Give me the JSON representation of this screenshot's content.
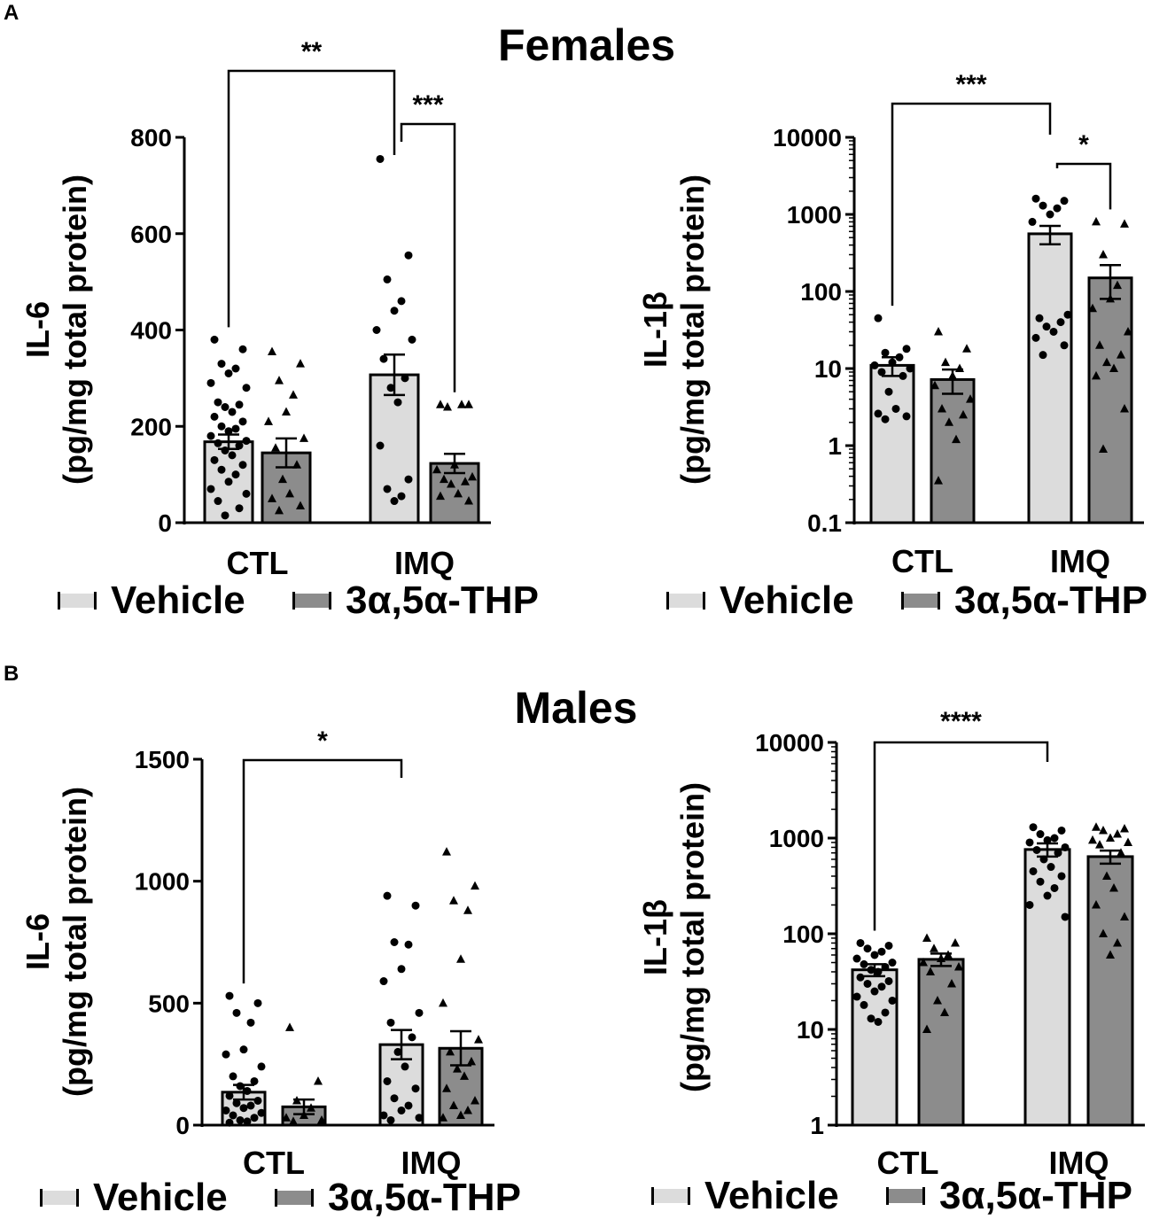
{
  "figure": {
    "panels": [
      {
        "letter": "A",
        "title": "Females"
      },
      {
        "letter": "B",
        "title": "Males"
      }
    ]
  },
  "colors": {
    "vehicle": "#dcdcdc",
    "thp": "#8c8c8c",
    "ink": "#000000"
  },
  "chart_data": [
    {
      "id": "A-IL6",
      "panel": "A",
      "type": "bar",
      "scale": "linear",
      "ylabel_line1": "IL-6",
      "ylabel_line2": "(pg/mg total protein)",
      "ylim": [
        0,
        800
      ],
      "yticks": [
        0,
        200,
        400,
        600,
        800
      ],
      "ytick_labels": [
        "0",
        "200",
        "400",
        "600",
        "800"
      ],
      "categories": [
        "CTL",
        "IMQ"
      ],
      "legend": [
        "Vehicle",
        "3α,5α-THP"
      ],
      "series": [
        {
          "name": "Vehicle",
          "marker": "circle",
          "values": [
            168,
            307
          ],
          "sem": [
            15,
            42
          ],
          "points": [
            [
              380,
              360,
              330,
              320,
              310,
              290,
              280,
              250,
              245,
              240,
              230,
              220,
              210,
              200,
              195,
              190,
              180,
              170,
              165,
              160,
              150,
              140,
              130,
              120,
              110,
              100,
              85,
              70,
              60,
              45,
              30,
              15
            ],
            [
              755,
              555,
              505,
              460,
              440,
              400,
              380,
              340,
              300,
              280,
              250,
              160,
              90,
              70,
              55,
              45
            ]
          ]
        },
        {
          "name": "3α,5α-THP",
          "marker": "triangle",
          "values": [
            145,
            123
          ],
          "sem": [
            30,
            20
          ],
          "points": [
            [
              355,
              330,
              295,
              265,
              230,
              210,
              175,
              155,
              120,
              90,
              60,
              50,
              35,
              25
            ],
            [
              245,
              245,
              240,
              245,
              120,
              110,
              95,
              90,
              85,
              80,
              60,
              55,
              45
            ]
          ]
        }
      ],
      "significance": [
        {
          "label": "**",
          "from": "Vehicle CTL",
          "to": "Vehicle IMQ"
        },
        {
          "label": "***",
          "from": "Vehicle IMQ",
          "to": "3α,5α-THP IMQ"
        }
      ]
    },
    {
      "id": "A-IL1b",
      "panel": "A",
      "type": "bar",
      "scale": "log",
      "ylabel_line1": "IL-1β",
      "ylabel_line2": "(pg/mg total protein)",
      "ylim": [
        0.1,
        10000
      ],
      "yticks": [
        0.1,
        1,
        10,
        100,
        1000,
        10000
      ],
      "ytick_labels": [
        "0.1",
        "1",
        "10",
        "100",
        "1000",
        "10000"
      ],
      "categories": [
        "CTL",
        "IMQ"
      ],
      "legend": [
        "Vehicle",
        "3α,5α-THP"
      ],
      "series": [
        {
          "name": "Vehicle",
          "marker": "circle",
          "values": [
            11,
            560
          ],
          "sem": [
            3,
            150
          ],
          "points": [
            [
              45,
              18,
              16,
              14,
              12,
              11,
              10,
              9,
              8,
              5,
              3,
              2.6,
              2.4,
              2.2
            ],
            [
              1600,
              1500,
              1300,
              1200,
              1000,
              800,
              50,
              45,
              40,
              35,
              30,
              25,
              20,
              15
            ]
          ]
        },
        {
          "name": "3α,5α-THP",
          "marker": "triangle",
          "values": [
            7.2,
            150
          ],
          "sem": [
            2.5,
            70
          ],
          "points": [
            [
              30,
              18,
              12,
              10,
              8,
              6,
              4,
              3,
              2.5,
              2,
              1.2,
              0.35
            ],
            [
              800,
              750,
              300,
              120,
              80,
              60,
              30,
              20,
              15,
              12,
              10,
              8,
              3,
              0.9
            ]
          ]
        }
      ],
      "significance": [
        {
          "label": "***",
          "from": "Vehicle CTL",
          "to": "Vehicle IMQ"
        },
        {
          "label": "*",
          "from": "Vehicle IMQ",
          "to": "3α,5α-THP IMQ"
        }
      ]
    },
    {
      "id": "B-IL6",
      "panel": "B",
      "type": "bar",
      "scale": "linear",
      "ylabel_line1": "IL-6",
      "ylabel_line2": "(pg/mg total protein)",
      "ylim": [
        0,
        1500
      ],
      "yticks": [
        0,
        500,
        1000,
        1500
      ],
      "ytick_labels": [
        "0",
        "500",
        "1000",
        "1500"
      ],
      "categories": [
        "CTL",
        "IMQ"
      ],
      "legend": [
        "Vehicle",
        "3α,5α-THP"
      ],
      "series": [
        {
          "name": "Vehicle",
          "marker": "circle",
          "values": [
            135,
            330
          ],
          "sem": [
            30,
            60
          ],
          "points": [
            [
              530,
              500,
              460,
              420,
              310,
              290,
              240,
              200,
              180,
              160,
              140,
              120,
              100,
              90,
              80,
              70,
              60,
              50,
              40,
              30,
              20,
              15,
              10
            ],
            [
              940,
              900,
              750,
              740,
              640,
              590,
              460,
              420,
              360,
              300,
              240,
              180,
              150,
              110,
              80,
              60,
              40,
              30,
              20
            ]
          ]
        },
        {
          "name": "3α,5α-THP",
          "marker": "triangle",
          "values": [
            75,
            315
          ],
          "sem": [
            30,
            70
          ],
          "points": [
            [
              400,
              180,
              100,
              70,
              40,
              30,
              20,
              15
            ],
            [
              1120,
              980,
              920,
              880,
              680,
              500,
              350,
              300,
              260,
              230,
              200,
              150,
              100,
              80,
              60,
              40,
              30
            ]
          ]
        }
      ],
      "significance": [
        {
          "label": "*",
          "from": "Vehicle CTL",
          "to": "Vehicle IMQ"
        }
      ]
    },
    {
      "id": "B-IL1b",
      "panel": "B",
      "type": "bar",
      "scale": "log",
      "ylabel_line1": "IL-1β",
      "ylabel_line2": "(pg/mg total protein)",
      "ylim": [
        1,
        10000
      ],
      "yticks": [
        1,
        10,
        100,
        1000,
        10000
      ],
      "ytick_labels": [
        "1",
        "10",
        "100",
        "1000",
        "10000"
      ],
      "categories": [
        "CTL",
        "IMQ"
      ],
      "legend": [
        "Vehicle",
        "3α,5α-THP"
      ],
      "series": [
        {
          "name": "Vehicle",
          "marker": "circle",
          "values": [
            42,
            760
          ],
          "sem": [
            6,
            120
          ],
          "points": [
            [
              80,
              75,
              70,
              65,
              60,
              55,
              50,
              48,
              45,
              42,
              40,
              35,
              32,
              30,
              28,
              25,
              22,
              20,
              18,
              15,
              13,
              12
            ],
            [
              1300,
              1200,
              1100,
              1000,
              950,
              900,
              800,
              750,
              700,
              600,
              500,
              450,
              400,
              350,
              300,
              250,
              200,
              150
            ]
          ]
        },
        {
          "name": "3α,5α-THP",
          "marker": "triangle",
          "values": [
            54,
            640
          ],
          "sem": [
            8,
            100
          ],
          "points": [
            [
              90,
              80,
              70,
              60,
              55,
              50,
              45,
              40,
              30,
              20,
              15,
              10
            ],
            [
              1300,
              1250,
              1200,
              1100,
              1000,
              950,
              900,
              850,
              700,
              400,
              300,
              200,
              150,
              100,
              80,
              60
            ]
          ]
        }
      ],
      "significance": [
        {
          "label": "****",
          "from": "Vehicle CTL",
          "to": "Vehicle IMQ"
        }
      ]
    }
  ]
}
